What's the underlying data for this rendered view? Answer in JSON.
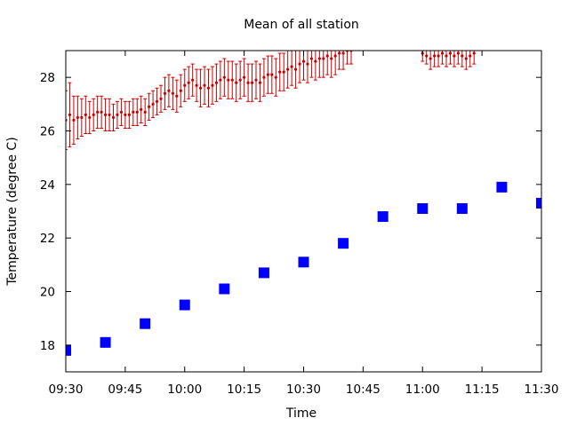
{
  "chart_data": {
    "type": "scatter",
    "title": "Mean of all station",
    "xlabel": "Time",
    "ylabel": "Temperature (degree C)",
    "xlim": [
      "09:30",
      "11:30"
    ],
    "ylim": [
      17,
      29
    ],
    "x_ticks": [
      "09:30",
      "09:45",
      "10:00",
      "10:15",
      "10:30",
      "10:45",
      "11:00",
      "11:15",
      "11:30"
    ],
    "y_ticks": [
      18,
      20,
      22,
      24,
      26,
      28
    ],
    "grid": false,
    "legend": "none",
    "series": [
      {
        "marker": "square",
        "color": "#0000ff",
        "x": [
          "09:30",
          "09:40",
          "09:50",
          "10:00",
          "10:10",
          "10:20",
          "10:30",
          "10:40",
          "10:50",
          "11:00",
          "11:10",
          "11:20",
          "11:30"
        ],
        "y": [
          17.8,
          18.1,
          18.8,
          19.5,
          20.1,
          20.7,
          21.1,
          21.8,
          22.8,
          23.1,
          23.1,
          23.9,
          23.3
        ]
      },
      {
        "marker": "dot-with-errorbars",
        "color": "#cc0000",
        "x": [
          "09:30",
          "09:31",
          "09:32",
          "09:33",
          "09:34",
          "09:35",
          "09:36",
          "09:37",
          "09:38",
          "09:39",
          "09:40",
          "09:41",
          "09:42",
          "09:43",
          "09:44",
          "09:45",
          "09:46",
          "09:47",
          "09:48",
          "09:49",
          "09:50",
          "09:51",
          "09:52",
          "09:53",
          "09:54",
          "09:55",
          "09:56",
          "09:57",
          "09:58",
          "09:59",
          "10:00",
          "10:01",
          "10:02",
          "10:03",
          "10:04",
          "10:05",
          "10:06",
          "10:07",
          "10:08",
          "10:09",
          "10:10",
          "10:11",
          "10:12",
          "10:13",
          "10:14",
          "10:15",
          "10:16",
          "10:17",
          "10:18",
          "10:19",
          "10:20",
          "10:21",
          "10:22",
          "10:23",
          "10:24",
          "10:25",
          "10:26",
          "10:27",
          "10:28",
          "10:29",
          "10:30",
          "10:31",
          "10:32",
          "10:33",
          "10:34",
          "10:35",
          "10:36",
          "10:37",
          "10:38",
          "10:39",
          "10:40",
          "10:41",
          "10:42",
          "11:00",
          "11:01",
          "11:02",
          "11:03",
          "11:04",
          "11:05",
          "11:06",
          "11:07",
          "11:08",
          "11:09",
          "11:10",
          "11:11",
          "11:12",
          "11:13"
        ],
        "y": [
          26.4,
          26.6,
          26.4,
          26.5,
          26.5,
          26.6,
          26.5,
          26.6,
          26.7,
          26.7,
          26.6,
          26.6,
          26.5,
          26.6,
          26.7,
          26.6,
          26.6,
          26.7,
          26.7,
          26.8,
          26.7,
          26.9,
          27.0,
          27.1,
          27.2,
          27.4,
          27.5,
          27.4,
          27.3,
          27.5,
          27.7,
          27.8,
          27.9,
          27.7,
          27.6,
          27.7,
          27.6,
          27.7,
          27.8,
          27.9,
          28.0,
          27.9,
          27.9,
          27.8,
          27.9,
          28.0,
          27.8,
          27.8,
          27.9,
          27.8,
          28.0,
          28.1,
          28.1,
          28.0,
          28.2,
          28.2,
          28.3,
          28.4,
          28.3,
          28.5,
          28.6,
          28.5,
          28.7,
          28.6,
          28.7,
          28.7,
          28.8,
          28.7,
          28.8,
          28.9,
          28.9,
          29.0,
          29.0,
          28.9,
          28.8,
          28.7,
          28.8,
          28.8,
          28.9,
          28.8,
          28.9,
          28.8,
          28.9,
          28.8,
          28.7,
          28.8,
          28.9
        ],
        "err": [
          1.1,
          1.2,
          0.9,
          0.8,
          0.7,
          0.7,
          0.6,
          0.6,
          0.6,
          0.6,
          0.6,
          0.6,
          0.5,
          0.5,
          0.5,
          0.5,
          0.5,
          0.5,
          0.5,
          0.5,
          0.5,
          0.5,
          0.5,
          0.5,
          0.5,
          0.6,
          0.6,
          0.6,
          0.6,
          0.6,
          0.6,
          0.6,
          0.6,
          0.6,
          0.7,
          0.7,
          0.7,
          0.7,
          0.7,
          0.7,
          0.7,
          0.7,
          0.7,
          0.7,
          0.7,
          0.7,
          0.7,
          0.7,
          0.7,
          0.7,
          0.7,
          0.7,
          0.7,
          0.7,
          0.7,
          0.7,
          0.7,
          0.7,
          0.7,
          0.7,
          0.7,
          0.7,
          0.7,
          0.7,
          0.7,
          0.7,
          0.7,
          0.7,
          0.7,
          0.6,
          0.6,
          0.5,
          0.5,
          0.3,
          0.3,
          0.4,
          0.4,
          0.4,
          0.4,
          0.4,
          0.4,
          0.4,
          0.4,
          0.4,
          0.4,
          0.4,
          0.4
        ]
      }
    ]
  }
}
